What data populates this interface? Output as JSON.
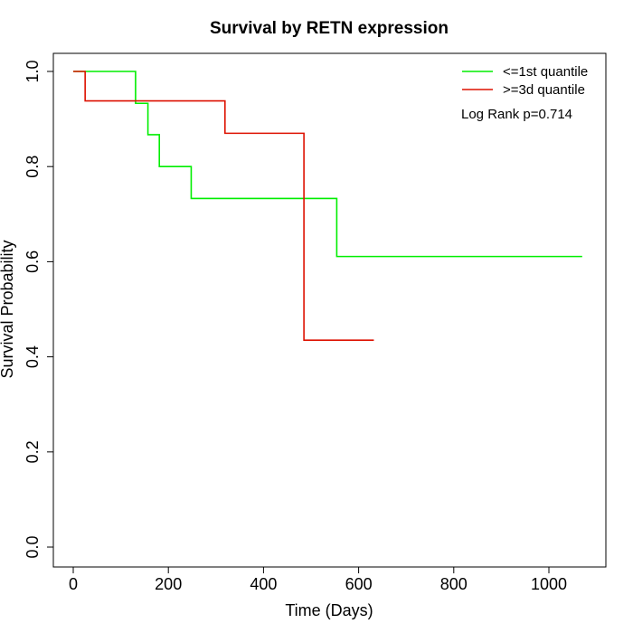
{
  "chart_data": {
    "type": "line",
    "title": "Survival by RETN expression",
    "xlabel": "Time (Days)",
    "ylabel": "Survival Probability",
    "xlim": [
      0,
      1070
    ],
    "ylim": [
      0,
      1.0
    ],
    "x_ticks": [
      0,
      200,
      400,
      600,
      800,
      1000
    ],
    "y_ticks": [
      0.0,
      0.2,
      0.4,
      0.6,
      0.8,
      1.0
    ],
    "x_tick_labels": [
      "0",
      "200",
      "400",
      "600",
      "800",
      "1000"
    ],
    "y_tick_labels": [
      "0.0",
      "0.2",
      "0.4",
      "0.6",
      "0.8",
      "1.0"
    ],
    "grid": false,
    "legend_position": "top-right",
    "annotation": "Log Rank p=0.714",
    "series": [
      {
        "name": "<=1st quantile",
        "color": "#00ee00",
        "step_x": [
          0,
          131,
          157,
          181,
          248,
          554,
          1070
        ],
        "step_y": [
          1.0,
          0.933,
          0.867,
          0.8,
          0.733,
          0.611,
          0.611
        ]
      },
      {
        "name": ">=3d quantile",
        "color": "#dd1100",
        "step_x": [
          0,
          25,
          319,
          485,
          632
        ],
        "step_y": [
          1.0,
          0.938,
          0.87,
          0.435,
          0.435
        ]
      }
    ]
  }
}
